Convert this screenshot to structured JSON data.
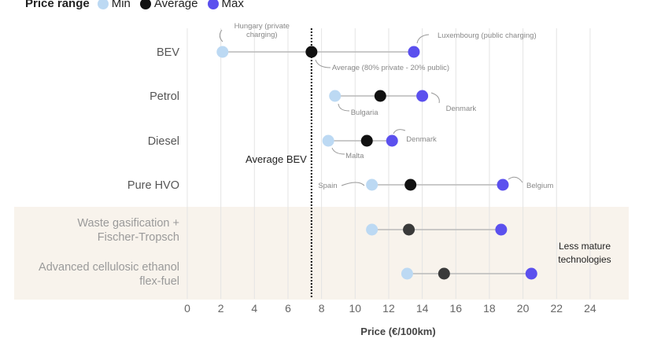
{
  "legend": {
    "title": "Price range",
    "items": [
      {
        "label": "Min",
        "color": "#bcd9f3"
      },
      {
        "label": "Average",
        "color": "#111111"
      },
      {
        "label": "Max",
        "color": "#5b50ee"
      }
    ]
  },
  "chart_data": {
    "type": "dot-range",
    "xlabel": "Price (€/100km)",
    "xlim": [
      0,
      26
    ],
    "xticks": [
      0,
      2,
      4,
      6,
      8,
      10,
      12,
      14,
      16,
      18,
      20,
      22,
      24
    ],
    "grid": true,
    "reference_line": {
      "label": "Average BEV",
      "value": 7.4
    },
    "shaded_group": {
      "label": "Less mature technologies",
      "categories": [
        "Waste gasification + Fischer-Tropsch",
        "Advanced cellulosic ethanol flex-fuel"
      ]
    },
    "categories": [
      "BEV",
      "Petrol",
      "Diesel",
      "Pure HVO",
      "Waste gasification + Fischer-Tropsch",
      "Advanced cellulosic ethanol flex-fuel"
    ],
    "category_lines": [
      [
        "BEV"
      ],
      [
        "Petrol"
      ],
      [
        "Diesel"
      ],
      [
        "Pure HVO"
      ],
      [
        "Waste gasification +",
        "Fischer-Tropsch"
      ],
      [
        "Advanced cellulosic ethanol",
        "flex-fuel"
      ]
    ],
    "series": [
      {
        "name": "Min",
        "color": "#bcd9f3",
        "values": [
          2.1,
          8.8,
          8.4,
          11.0,
          11.0,
          13.1
        ]
      },
      {
        "name": "Average",
        "color": "#111111",
        "values": [
          7.4,
          11.5,
          10.7,
          13.3,
          13.2,
          15.3
        ]
      },
      {
        "name": "Max",
        "color": "#5b50ee",
        "values": [
          13.5,
          14.0,
          12.2,
          18.8,
          18.7,
          20.5
        ]
      }
    ],
    "annotations": [
      {
        "lines": [
          "Hungary (private",
          "charging)"
        ],
        "category": "BEV",
        "series": "Min"
      },
      {
        "lines": [
          "Luxembourg (public charging)"
        ],
        "category": "BEV",
        "series": "Max"
      },
      {
        "lines": [
          "Average (80% private - 20% public)"
        ],
        "category": "BEV",
        "series": "Average"
      },
      {
        "lines": [
          "Bulgaria"
        ],
        "category": "Petrol",
        "series": "Min"
      },
      {
        "lines": [
          "Denmark"
        ],
        "category": "Petrol",
        "series": "Max"
      },
      {
        "lines": [
          "Malta"
        ],
        "category": "Diesel",
        "series": "Min"
      },
      {
        "lines": [
          "Denmark"
        ],
        "category": "Diesel",
        "series": "Max"
      },
      {
        "lines": [
          "Spain"
        ],
        "category": "Pure HVO",
        "series": "Min"
      },
      {
        "lines": [
          "Belgium"
        ],
        "category": "Pure HVO",
        "series": "Max"
      }
    ]
  }
}
